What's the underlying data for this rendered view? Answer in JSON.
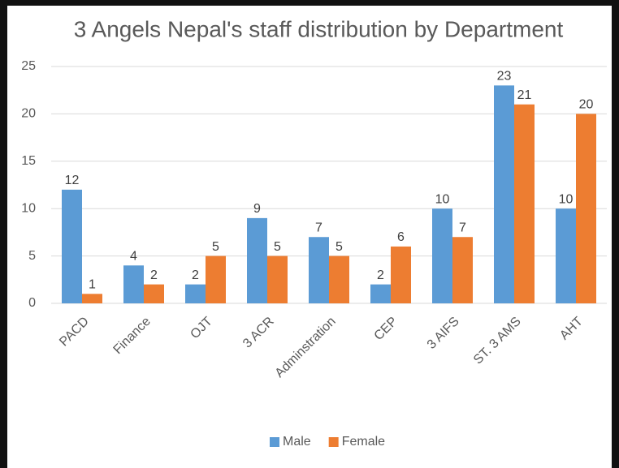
{
  "chart_data": {
    "type": "bar",
    "title": "3 Angels Nepal's staff distribution by Department",
    "categories": [
      "PACD",
      "Finance",
      "OJT",
      "3 ACR",
      "Adminstration",
      "CEP",
      "3 AIFS",
      "ST. 3 AMS",
      "AHT"
    ],
    "series": [
      {
        "name": "Male",
        "color": "#5b9bd5",
        "values": [
          12,
          4,
          2,
          9,
          7,
          2,
          10,
          23,
          10
        ]
      },
      {
        "name": "Female",
        "color": "#ed7d31",
        "values": [
          1,
          2,
          5,
          5,
          5,
          6,
          7,
          21,
          20
        ]
      }
    ],
    "ylim": [
      0,
      25
    ],
    "yticks": [
      0,
      5,
      10,
      15,
      20,
      25
    ],
    "grid": true,
    "legend": "bottom"
  }
}
